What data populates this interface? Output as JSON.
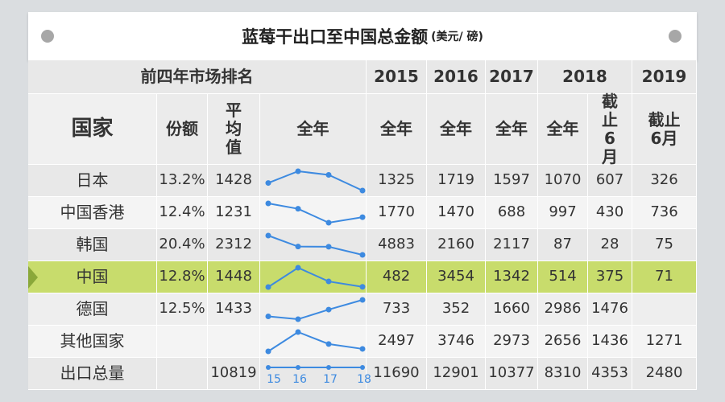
{
  "title": "蓝莓干出口至中国总金额",
  "unit": "(美元/ 磅)",
  "header": {
    "group": "前四年市场排名",
    "years": [
      "2015",
      "2016",
      "2017",
      "2018",
      "2019"
    ],
    "columns": [
      "国家",
      "份额",
      "平均值",
      "全年",
      "全年",
      "全年",
      "全年",
      "全年",
      "截止6月",
      "截止6月"
    ]
  },
  "rows": [
    {
      "name": "日本",
      "share": "13.2%",
      "avg": 1428,
      "values": [
        1325,
        1719,
        1597,
        1070,
        607,
        326
      ]
    },
    {
      "name": "中国香港",
      "share": "12.4%",
      "avg": 1231,
      "values": [
        1770,
        1470,
        688,
        997,
        430,
        736
      ]
    },
    {
      "name": "韩国",
      "share": "20.4%",
      "avg": 2312,
      "values": [
        4883,
        2160,
        2117,
        87,
        28,
        75
      ]
    },
    {
      "name": "中国",
      "share": "12.8%",
      "avg": 1448,
      "values": [
        482,
        3454,
        1342,
        514,
        375,
        71
      ]
    },
    {
      "name": "德国",
      "share": "12.5%",
      "avg": 1433,
      "values": [
        733,
        352,
        1660,
        2986,
        1476,
        null
      ]
    },
    {
      "name": "其他国家",
      "share": null,
      "avg": null,
      "values": [
        2497,
        3746,
        2973,
        2656,
        1436,
        1271
      ]
    },
    {
      "name": "出口总量",
      "share": null,
      "avg": 10819,
      "values": [
        11690,
        12901,
        10377,
        8310,
        4353,
        2480
      ]
    }
  ],
  "spark_labels": [
    "15",
    "16",
    "17",
    "18"
  ]
}
